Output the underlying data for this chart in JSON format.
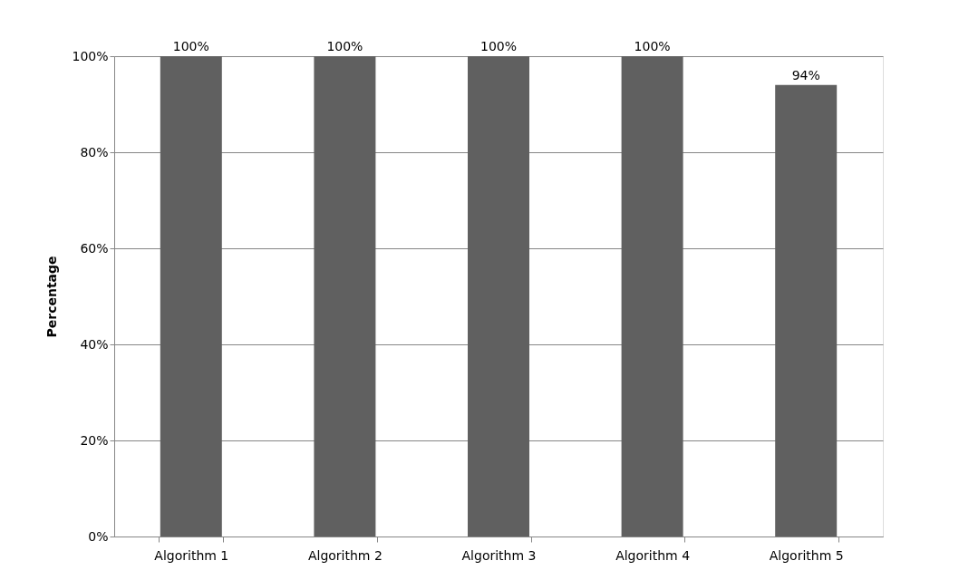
{
  "chart_data": {
    "type": "bar",
    "ylabel": "Percentage",
    "categories": [
      "Algorithm 1",
      "Algorithm 2",
      "Algorithm 3",
      "Algorithm 4",
      "Algorithm 5"
    ],
    "values": [
      100,
      100,
      100,
      100,
      94
    ],
    "value_labels": [
      "100%",
      "100%",
      "100%",
      "100%",
      "94%"
    ],
    "color": "#606060",
    "ylim": [
      0,
      100
    ],
    "yticks": [
      {
        "value": 0,
        "label": "0%"
      },
      {
        "value": 20,
        "label": "20%"
      },
      {
        "value": 40,
        "label": "40%"
      },
      {
        "value": 60,
        "label": "60%"
      },
      {
        "value": 80,
        "label": "80%"
      },
      {
        "value": 100,
        "label": "100%"
      }
    ],
    "grid": "y"
  }
}
